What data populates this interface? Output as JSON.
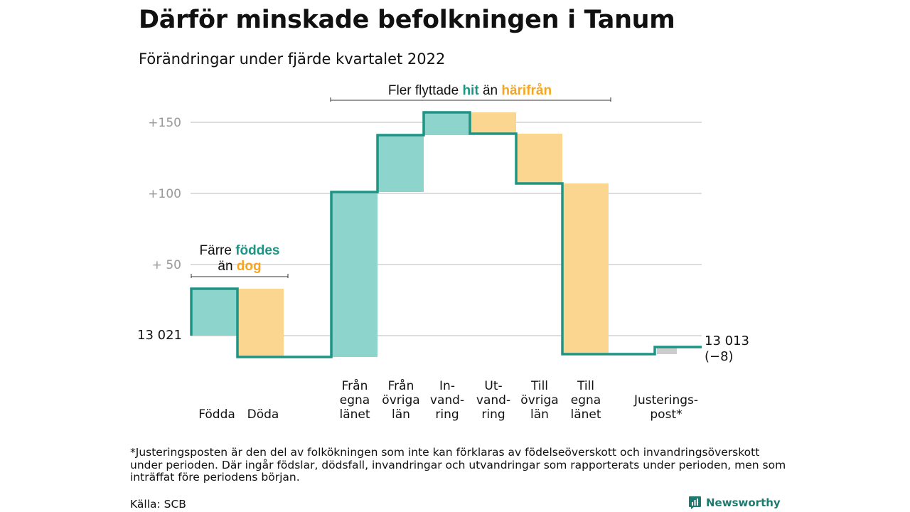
{
  "title": "Därför minskade befolkningen i Tanum",
  "subtitle": "Förändringar under fjärde kvartalet 2022",
  "chart_data": {
    "type": "waterfall",
    "title": "Därför minskade befolkningen i Tanum",
    "subtitle": "Förändringar under fjärde kvartalet 2022",
    "start_label": "13 021",
    "end_label": "13 013",
    "end_change_label": "(−8)",
    "y_ticks": [
      {
        "value": 150,
        "label": "+150"
      },
      {
        "value": 100,
        "label": "+100"
      },
      {
        "value": 50,
        "label": "+ 50"
      }
    ],
    "ylim": [
      -18,
      160
    ],
    "steps": [
      {
        "label": [
          "Födda"
        ],
        "delta": 33,
        "kind": "in"
      },
      {
        "label": [
          "Döda"
        ],
        "delta": -48,
        "kind": "out"
      },
      {
        "label": [
          "Från",
          "egna",
          "länet"
        ],
        "delta": 116,
        "kind": "in"
      },
      {
        "label": [
          "Från",
          "övriga",
          "län"
        ],
        "delta": 40,
        "kind": "in"
      },
      {
        "label": [
          "In-",
          "vand-",
          "ring"
        ],
        "delta": 16,
        "kind": "in"
      },
      {
        "label": [
          "Ut-",
          "vand-",
          "ring"
        ],
        "delta": -15,
        "kind": "out"
      },
      {
        "label": [
          "Till",
          "övriga",
          "län"
        ],
        "delta": -35,
        "kind": "out"
      },
      {
        "label": [
          "Till",
          "egna",
          "länet"
        ],
        "delta": -120,
        "kind": "out"
      },
      {
        "label": [
          "Justerings-",
          "post*"
        ],
        "delta": 5,
        "kind": "adjustment"
      }
    ],
    "annotations": {
      "births_deaths": {
        "line1": "Färre",
        "highlight1": "föddes",
        "line2": "än",
        "highlight2": "dog"
      },
      "migration": {
        "prefix": "Fler flyttade",
        "highlight1": "hit",
        "middle": "än",
        "highlight2": "härifrån"
      }
    },
    "colors": {
      "in": "#8dd4cc",
      "out": "#fad690",
      "adjustment": "#cccccc",
      "line": "#1d9484",
      "teal_text": "#1d9484",
      "orange_text": "#f5a623",
      "grid": "#dddddd",
      "tick_text": "#999999"
    },
    "grid": true
  },
  "footnote": "*Justeringsposten är den del av folkökningen som inte kan förklaras av födelseöverskott och invandringsöverskott under perioden. Där ingår födslar, dödsfall, invandringar och utvandringar som rapporterats under perioden, men som inträffat före periodens början.",
  "source": "Källa: SCB",
  "brand": {
    "name": "Newsworthy",
    "icon": "newsworthy-logo-icon"
  }
}
